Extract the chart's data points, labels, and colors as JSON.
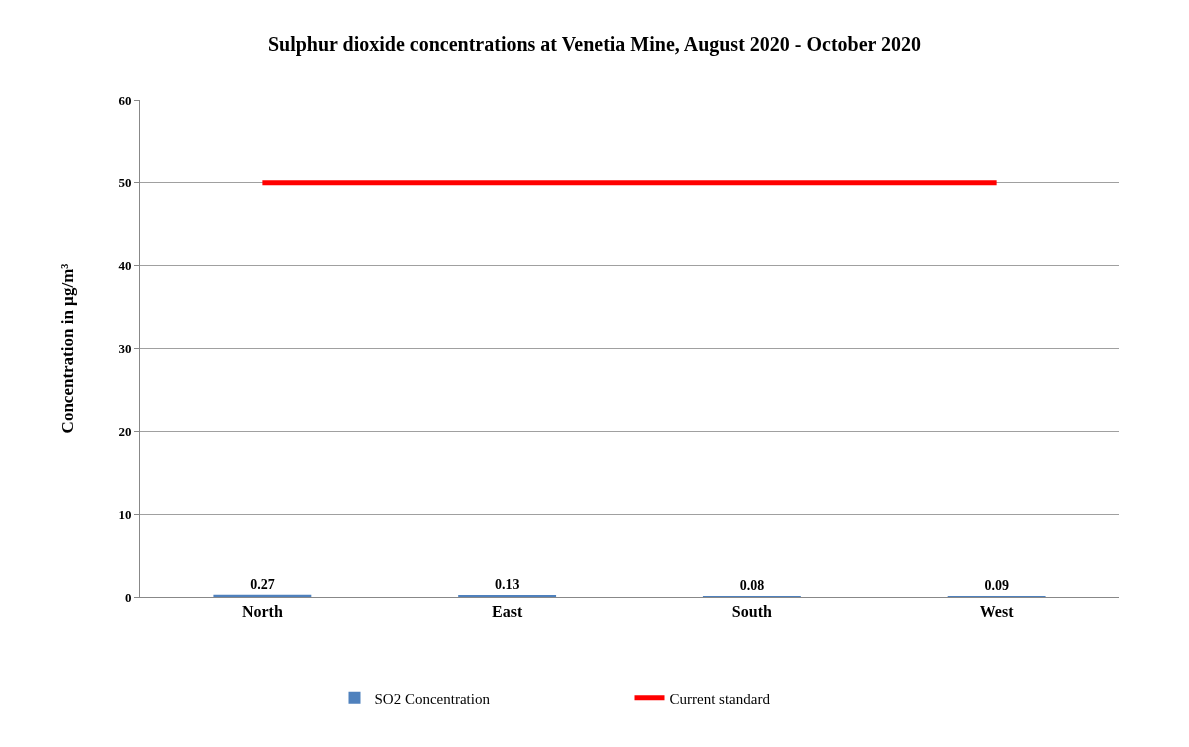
{
  "chart_data": {
    "type": "bar",
    "title": "Sulphur dioxide concentrations at Venetia Mine, August 2020 - October 2020",
    "ylabel": "Concentration in µg/m³",
    "categories": [
      "North",
      "East",
      "South",
      "West"
    ],
    "series": [
      {
        "name": "SO2 Concentration",
        "color": "#4f81bd",
        "values": [
          0.27,
          0.13,
          0.08,
          0.09
        ],
        "value_labels": [
          "0.27",
          "0.13",
          "0.08",
          "0.09"
        ]
      },
      {
        "name": "Current standard",
        "type": "line",
        "color": "#ff0000",
        "values": [
          50,
          50,
          50,
          50
        ]
      }
    ],
    "ylim": [
      0,
      60
    ],
    "yticks": [
      0,
      10,
      20,
      30,
      40,
      50,
      60
    ],
    "grid": "y",
    "legend": "bottom",
    "marker": "none",
    "line_style": "solid"
  }
}
